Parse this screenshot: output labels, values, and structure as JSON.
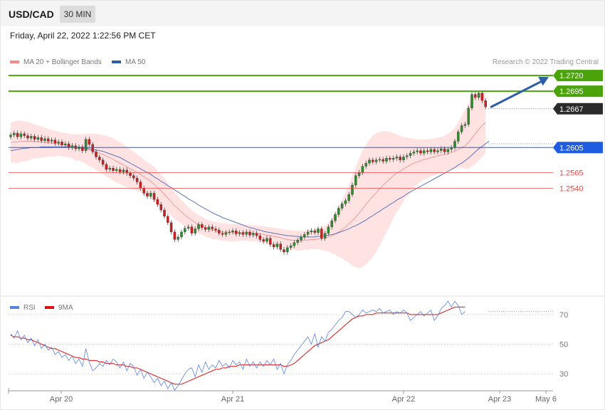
{
  "header": {
    "symbol": "USD/CAD",
    "timeframe": "30 MIN"
  },
  "datetime": "Friday, April 22, 2022 1:22:56 PM CET",
  "copyright": "Research © 2022 Trading Central",
  "colors": {
    "resistance": "#4aa30b",
    "pivot": "#1f5ce0",
    "support": "#e84a4a",
    "current": "#2b2b2b",
    "band_fill": "#ffd9d9",
    "ma20": "#f28b8b",
    "ma50": "#4a66b0",
    "rsi": "#5b82e0",
    "rsi_ma": "#e01010",
    "arrow": "#2f5ea8",
    "up_candle": "#2e8b2e",
    "down_candle": "#c82020"
  },
  "chart_data": [
    {
      "type": "candlestick",
      "title": "USD/CAD 30 MIN",
      "legend": [
        "MA 20 + Bollinger Bands",
        "MA 50"
      ],
      "legend_position": "top-left",
      "x_ticks": [
        "Apr 20",
        "Apr 21",
        "Apr 22",
        "Apr 23",
        "May 6"
      ],
      "ylim": [
        1.238,
        1.2735
      ],
      "levels": [
        {
          "label": "1.2720",
          "value": 1.272,
          "kind": "resistance"
        },
        {
          "label": "1.2695",
          "value": 1.2695,
          "kind": "resistance"
        },
        {
          "label": "1.2667",
          "value": 1.2667,
          "kind": "current"
        },
        {
          "label": "1.2605",
          "value": 1.2605,
          "kind": "pivot"
        },
        {
          "label": "1.2565",
          "value": 1.2565,
          "kind": "support"
        },
        {
          "label": "1.2540",
          "value": 1.254,
          "kind": "support"
        }
      ],
      "close": [
        1.2625,
        1.2628,
        1.2622,
        1.2627,
        1.2624,
        1.262,
        1.2623,
        1.2618,
        1.2621,
        1.2616,
        1.2619,
        1.2615,
        1.2617,
        1.2612,
        1.2614,
        1.2609,
        1.2611,
        1.2605,
        1.2608,
        1.2603,
        1.2606,
        1.26,
        1.2618,
        1.261,
        1.2598,
        1.259,
        1.2585,
        1.2578,
        1.257,
        1.2572,
        1.2568,
        1.257,
        1.2566,
        1.2569,
        1.2564,
        1.256,
        1.2556,
        1.255,
        1.254,
        1.2532,
        1.2527,
        1.2532,
        1.2522,
        1.2514,
        1.2505,
        1.2495,
        1.2485,
        1.247,
        1.2458,
        1.2462,
        1.247,
        1.2476,
        1.2478,
        1.2468,
        1.2475,
        1.2482,
        1.2477,
        1.2474,
        1.2478,
        1.2475,
        1.2473,
        1.2468,
        1.2466,
        1.2469,
        1.247,
        1.2472,
        1.2467,
        1.2469,
        1.2466,
        1.247,
        1.2465,
        1.2468,
        1.2464,
        1.2458,
        1.2455,
        1.246,
        1.245,
        1.2446,
        1.2451,
        1.2442,
        1.2438,
        1.2445,
        1.2448,
        1.2453,
        1.2457,
        1.2462,
        1.2466,
        1.247,
        1.2472,
        1.2469,
        1.2475,
        1.246,
        1.2468,
        1.2478,
        1.2488,
        1.2498,
        1.2508,
        1.2515,
        1.252,
        1.253,
        1.2545,
        1.256,
        1.2565,
        1.2575,
        1.258,
        1.2585,
        1.2582,
        1.2585,
        1.2586,
        1.2583,
        1.2588,
        1.2586,
        1.2588,
        1.259,
        1.2585,
        1.259,
        1.2592,
        1.2596,
        1.2598,
        1.26,
        1.2596,
        1.26,
        1.2598,
        1.2602,
        1.2598,
        1.26,
        1.2603,
        1.2598,
        1.2602,
        1.2605,
        1.2615,
        1.263,
        1.264,
        1.2642,
        1.2668,
        1.269,
        1.2685,
        1.2692,
        1.268,
        1.267
      ],
      "ma20": [
        1.2613,
        1.2614,
        1.2614,
        1.2615,
        1.2615,
        1.2615,
        1.2615,
        1.2615,
        1.2614,
        1.2614,
        1.2613,
        1.2613,
        1.2612,
        1.2611,
        1.2611,
        1.261,
        1.2609,
        1.2608,
        1.2607,
        1.2605,
        1.2605,
        1.2604,
        1.2603,
        1.2601,
        1.26,
        1.2598,
        1.2596,
        1.2594,
        1.2591,
        1.2589,
        1.2586,
        1.2583,
        1.258,
        1.2577,
        1.2574,
        1.2571,
        1.2568,
        1.2565,
        1.2562,
        1.2558,
        1.2555,
        1.2551,
        1.2546,
        1.2541,
        1.2536,
        1.253,
        1.2524,
        1.2518,
        1.2512,
        1.2507,
        1.2502,
        1.2497,
        1.2493,
        1.2489,
        1.2485,
        1.2482,
        1.248,
        1.2477,
        1.2475,
        1.2473,
        1.2472,
        1.2471,
        1.247,
        1.247,
        1.2469,
        1.2469,
        1.2469,
        1.2469,
        1.2469,
        1.2469,
        1.2468,
        1.2468,
        1.2468,
        1.2467,
        1.2466,
        1.2465,
        1.2464,
        1.2463,
        1.2462,
        1.2461,
        1.2459,
        1.2458,
        1.2457,
        1.2457,
        1.2456,
        1.2456,
        1.2457,
        1.2457,
        1.2458,
        1.2458,
        1.2459,
        1.2459,
        1.246,
        1.2462,
        1.2464,
        1.2467,
        1.247,
        1.2474,
        1.2478,
        1.2483,
        1.2488,
        1.2494,
        1.25,
        1.2507,
        1.2514,
        1.2521,
        1.2527,
        1.2533,
        1.2539,
        1.2545,
        1.255,
        1.2555,
        1.256,
        1.2564,
        1.2567,
        1.2571,
        1.2574,
        1.2577,
        1.258,
        1.2582,
        1.2584,
        1.2586,
        1.2587,
        1.2589,
        1.259,
        1.2592,
        1.2593,
        1.2594,
        1.2595,
        1.2597,
        1.2599,
        1.2602,
        1.2605,
        1.2608,
        1.2613,
        1.262,
        1.2627,
        1.2634,
        1.264,
        1.2645
      ],
      "band_upper": [
        1.2645,
        1.2647,
        1.2648,
        1.2648,
        1.2647,
        1.2646,
        1.2644,
        1.2642,
        1.264,
        1.2639,
        1.2637,
        1.2635,
        1.2633,
        1.2632,
        1.263,
        1.2629,
        1.2628,
        1.2627,
        1.2626,
        1.2626,
        1.2626,
        1.2626,
        1.2627,
        1.2627,
        1.2627,
        1.2627,
        1.2626,
        1.2625,
        1.2624,
        1.2622,
        1.262,
        1.2617,
        1.2614,
        1.261,
        1.2606,
        1.2602,
        1.2598,
        1.2594,
        1.259,
        1.2586,
        1.2582,
        1.2578,
        1.2574,
        1.2568,
        1.2562,
        1.2556,
        1.2548,
        1.254,
        1.2533,
        1.2527,
        1.2521,
        1.2515,
        1.251,
        1.2505,
        1.2501,
        1.2497,
        1.2494,
        1.2491,
        1.2489,
        1.2487,
        1.2486,
        1.2485,
        1.2484,
        1.2484,
        1.2483,
        1.2483,
        1.2483,
        1.2482,
        1.2482,
        1.2482,
        1.2481,
        1.2481,
        1.248,
        1.248,
        1.2479,
        1.2478,
        1.2478,
        1.2477,
        1.2476,
        1.2475,
        1.2474,
        1.2473,
        1.2473,
        1.2472,
        1.2472,
        1.2472,
        1.2472,
        1.2473,
        1.2473,
        1.2474,
        1.2475,
        1.2477,
        1.248,
        1.2485,
        1.2492,
        1.25,
        1.251,
        1.252,
        1.2532,
        1.2545,
        1.256,
        1.2574,
        1.2588,
        1.26,
        1.261,
        1.2618,
        1.2624,
        1.2628,
        1.263,
        1.2631,
        1.2631,
        1.263,
        1.2628,
        1.2626,
        1.2624,
        1.2622,
        1.2621,
        1.262,
        1.2619,
        1.2618,
        1.2618,
        1.2618,
        1.2618,
        1.2619,
        1.262,
        1.2621,
        1.2622,
        1.2624,
        1.2627,
        1.2631,
        1.2637,
        1.2645,
        1.2655,
        1.2665,
        1.2675,
        1.2684,
        1.269,
        1.2694,
        1.2697,
        1.2698
      ],
      "band_lower": [
        1.2581,
        1.2581,
        1.258,
        1.2582,
        1.2583,
        1.2584,
        1.2586,
        1.2588,
        1.2588,
        1.2589,
        1.2589,
        1.2591,
        1.2591,
        1.259,
        1.2592,
        1.2591,
        1.259,
        1.2589,
        1.2588,
        1.2584,
        1.2584,
        1.2582,
        1.2579,
        1.2575,
        1.2573,
        1.2569,
        1.2566,
        1.2563,
        1.2558,
        1.2556,
        1.2552,
        1.2549,
        1.2546,
        1.2544,
        1.2542,
        1.254,
        1.2538,
        1.2536,
        1.2534,
        1.253,
        1.2528,
        1.2524,
        1.2518,
        1.2514,
        1.251,
        1.2504,
        1.25,
        1.2496,
        1.2491,
        1.2487,
        1.2483,
        1.2479,
        1.2476,
        1.2473,
        1.2469,
        1.2467,
        1.2466,
        1.2463,
        1.2461,
        1.2459,
        1.2458,
        1.2457,
        1.2456,
        1.2456,
        1.2455,
        1.2455,
        1.2455,
        1.2456,
        1.2456,
        1.2456,
        1.2455,
        1.2455,
        1.2456,
        1.2454,
        1.2453,
        1.2452,
        1.245,
        1.2449,
        1.2448,
        1.2447,
        1.2444,
        1.2443,
        1.2441,
        1.2442,
        1.244,
        1.244,
        1.2442,
        1.2441,
        1.2443,
        1.2442,
        1.2443,
        1.2441,
        1.244,
        1.2439,
        1.2436,
        1.2434,
        1.243,
        1.2428,
        1.2424,
        1.2421,
        1.2416,
        1.2414,
        1.2412,
        1.2414,
        1.2418,
        1.2424,
        1.243,
        1.2438,
        1.2448,
        1.2459,
        1.2469,
        1.248,
        1.2492,
        1.2502,
        1.251,
        1.252,
        1.2527,
        1.2534,
        1.2541,
        1.2546,
        1.255,
        1.2554,
        1.2556,
        1.2559,
        1.256,
        1.2563,
        1.2564,
        1.2566,
        1.2568,
        1.257,
        1.2571,
        1.2573,
        1.2573,
        1.2571,
        1.2571,
        1.2575,
        1.2579,
        1.2584,
        1.259,
        1.2596
      ],
      "ma50": [
        1.26,
        1.2601,
        1.2602,
        1.2603,
        1.2604,
        1.2604,
        1.2605,
        1.2605,
        1.2605,
        1.2606,
        1.2606,
        1.2606,
        1.2606,
        1.2606,
        1.2606,
        1.2606,
        1.2606,
        1.2606,
        1.2605,
        1.2605,
        1.2605,
        1.2604,
        1.2604,
        1.2603,
        1.2602,
        1.2601,
        1.26,
        1.2599,
        1.2597,
        1.2595,
        1.2593,
        1.2591,
        1.2589,
        1.2586,
        1.2583,
        1.258,
        1.2577,
        1.2574,
        1.2571,
        1.2568,
        1.2565,
        1.2562,
        1.2558,
        1.2555,
        1.2551,
        1.2548,
        1.2544,
        1.2541,
        1.2537,
        1.2534,
        1.253,
        1.2527,
        1.2523,
        1.252,
        1.2517,
        1.2513,
        1.251,
        1.2507,
        1.2504,
        1.2501,
        1.2498,
        1.2496,
        1.2493,
        1.2491,
        1.2489,
        1.2487,
        1.2485,
        1.2483,
        1.2481,
        1.2479,
        1.2477,
        1.2476,
        1.2474,
        1.2473,
        1.2471,
        1.247,
        1.2469,
        1.2468,
        1.2467,
        1.2466,
        1.2465,
        1.2464,
        1.2464,
        1.2463,
        1.2463,
        1.2462,
        1.2462,
        1.2462,
        1.2462,
        1.2462,
        1.2463,
        1.2463,
        1.2464,
        1.2465,
        1.2466,
        1.2467,
        1.2469,
        1.2471,
        1.2473,
        1.2475,
        1.2478,
        1.248,
        1.2483,
        1.2486,
        1.2489,
        1.2493,
        1.2496,
        1.25,
        1.2503,
        1.2507,
        1.251,
        1.2514,
        1.2517,
        1.2521,
        1.2524,
        1.2527,
        1.2531,
        1.2534,
        1.2537,
        1.254,
        1.2543,
        1.2546,
        1.2549,
        1.2552,
        1.2555,
        1.2558,
        1.2561,
        1.2564,
        1.2567,
        1.257,
        1.2573,
        1.2577,
        1.258,
        1.2584,
        1.2588,
        1.2593,
        1.2598,
        1.2603,
        1.2607,
        1.2611,
        1.2615
      ]
    },
    {
      "type": "line",
      "legend": [
        "RSI",
        "9MA"
      ],
      "legend_position": "top-left",
      "ylim": [
        20,
        80
      ],
      "y_ticks": [
        "70",
        "50",
        "30"
      ],
      "y_tick_values": [
        70,
        50,
        30
      ],
      "series": [
        {
          "name": "RSI",
          "values": [
            57,
            54,
            59,
            53,
            56,
            51,
            54,
            49,
            53,
            47,
            50,
            46,
            48,
            43,
            45,
            41,
            43,
            39,
            42,
            37,
            40,
            35,
            47,
            38,
            32,
            34,
            37,
            35,
            39,
            36,
            40,
            38,
            34,
            38,
            32,
            37,
            35,
            29,
            33,
            27,
            31,
            28,
            24,
            27,
            22,
            25,
            20,
            24,
            19,
            22,
            26,
            30,
            33,
            34,
            28,
            36,
            31,
            38,
            33,
            36,
            34,
            39,
            35,
            37,
            34,
            39,
            36,
            38,
            33,
            40,
            35,
            38,
            34,
            38,
            35,
            39,
            36,
            40,
            33,
            37,
            30,
            36,
            39,
            43,
            46,
            49,
            52,
            55,
            50,
            57,
            48,
            55,
            52,
            58,
            60,
            63,
            66,
            68,
            72,
            72,
            70,
            68,
            70,
            73,
            71,
            72,
            73,
            72,
            74,
            71,
            72,
            73,
            70,
            72,
            71,
            73,
            71,
            66,
            68,
            70,
            72,
            69,
            71,
            73,
            66,
            69,
            74,
            76,
            79,
            75,
            79,
            76,
            70,
            72
          ],
          "line_style": "thin"
        },
        {
          "name": "9MA",
          "values": [
            56,
            55,
            55,
            54,
            54,
            53,
            53,
            52,
            51,
            50,
            49,
            48,
            47,
            47,
            46,
            45,
            44,
            43,
            42,
            41,
            41,
            40,
            40,
            39,
            39,
            39,
            38,
            38,
            37,
            37,
            37,
            36,
            36,
            36,
            35,
            35,
            34,
            34,
            33,
            32,
            31,
            30,
            29,
            28,
            27,
            26,
            25,
            24,
            23,
            23,
            23,
            24,
            25,
            26,
            27,
            28,
            29,
            30,
            31,
            32,
            33,
            33,
            34,
            34,
            35,
            35,
            35,
            36,
            36,
            36,
            36,
            36,
            36,
            36,
            36,
            36,
            36,
            36,
            36,
            36,
            35,
            35,
            36,
            37,
            39,
            41,
            43,
            45,
            47,
            49,
            50,
            51,
            52,
            53,
            55,
            57,
            59,
            61,
            63,
            65,
            67,
            68,
            69,
            69,
            70,
            70,
            70,
            71,
            71,
            71,
            71,
            71,
            71,
            71,
            71,
            71,
            71,
            70,
            70,
            70,
            70,
            70,
            70,
            70,
            70,
            70,
            71,
            72,
            73,
            74,
            75,
            75,
            75,
            75
          ],
          "line_style": "medium"
        }
      ]
    }
  ]
}
